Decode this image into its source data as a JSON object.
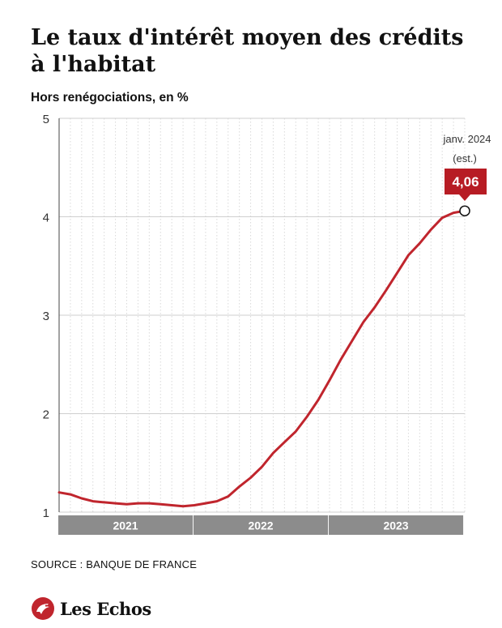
{
  "title": "Le taux d'intérêt moyen des crédits à l'habitat",
  "subtitle": "Hors renégociations, en %",
  "source": "SOURCE : BANQUE DE FRANCE",
  "brand": "Les Echos",
  "colors": {
    "line": "#c0252d",
    "callout": "#b71c24",
    "year_band": "#8c8c8c",
    "grid": "#d9d9d9"
  },
  "chart_data": {
    "type": "line",
    "title": "Le taux d'intérêt moyen des crédits à l'habitat",
    "ylabel": "Hors renégociations, en %",
    "ylim": [
      1,
      5
    ],
    "yticks": [
      1,
      2,
      3,
      4,
      5
    ],
    "ytick_labels": [
      "1",
      "2",
      "3",
      "4",
      "5"
    ],
    "grid": "vertical dotted monthly lines, horizontal lines at each tick",
    "x_start": "2021-01",
    "x_end": "2024-01",
    "x_groups": [
      {
        "label": "2021",
        "start": "2021-01",
        "end": "2021-12"
      },
      {
        "label": "2022",
        "start": "2022-01",
        "end": "2022-12"
      },
      {
        "label": "2023",
        "start": "2023-01",
        "end": "2023-12"
      }
    ],
    "series": [
      {
        "values": [
          {
            "x": "2021-01",
            "y": 1.2
          },
          {
            "x": "2021-02",
            "y": 1.18
          },
          {
            "x": "2021-03",
            "y": 1.14
          },
          {
            "x": "2021-04",
            "y": 1.11
          },
          {
            "x": "2021-05",
            "y": 1.1
          },
          {
            "x": "2021-06",
            "y": 1.09
          },
          {
            "x": "2021-07",
            "y": 1.08
          },
          {
            "x": "2021-08",
            "y": 1.09
          },
          {
            "x": "2021-09",
            "y": 1.09
          },
          {
            "x": "2021-10",
            "y": 1.08
          },
          {
            "x": "2021-11",
            "y": 1.07
          },
          {
            "x": "2021-12",
            "y": 1.06
          },
          {
            "x": "2022-01",
            "y": 1.07
          },
          {
            "x": "2022-02",
            "y": 1.09
          },
          {
            "x": "2022-03",
            "y": 1.11
          },
          {
            "x": "2022-04",
            "y": 1.16
          },
          {
            "x": "2022-05",
            "y": 1.26
          },
          {
            "x": "2022-06",
            "y": 1.35
          },
          {
            "x": "2022-07",
            "y": 1.46
          },
          {
            "x": "2022-08",
            "y": 1.6
          },
          {
            "x": "2022-09",
            "y": 1.71
          },
          {
            "x": "2022-10",
            "y": 1.82
          },
          {
            "x": "2022-11",
            "y": 1.97
          },
          {
            "x": "2022-12",
            "y": 2.14
          },
          {
            "x": "2023-01",
            "y": 2.34
          },
          {
            "x": "2023-02",
            "y": 2.55
          },
          {
            "x": "2023-03",
            "y": 2.74
          },
          {
            "x": "2023-04",
            "y": 2.93
          },
          {
            "x": "2023-05",
            "y": 3.08
          },
          {
            "x": "2023-06",
            "y": 3.25
          },
          {
            "x": "2023-07",
            "y": 3.43
          },
          {
            "x": "2023-08",
            "y": 3.61
          },
          {
            "x": "2023-09",
            "y": 3.73
          },
          {
            "x": "2023-10",
            "y": 3.87
          },
          {
            "x": "2023-11",
            "y": 3.99
          },
          {
            "x": "2023-12",
            "y": 4.04
          },
          {
            "x": "2024-01",
            "y": 4.06
          }
        ]
      }
    ],
    "annotations": [
      {
        "x": "2024-01",
        "y": 4.06,
        "date_label": "janv. 2024",
        "note": "(est.)",
        "value_label": "4,06"
      }
    ]
  }
}
